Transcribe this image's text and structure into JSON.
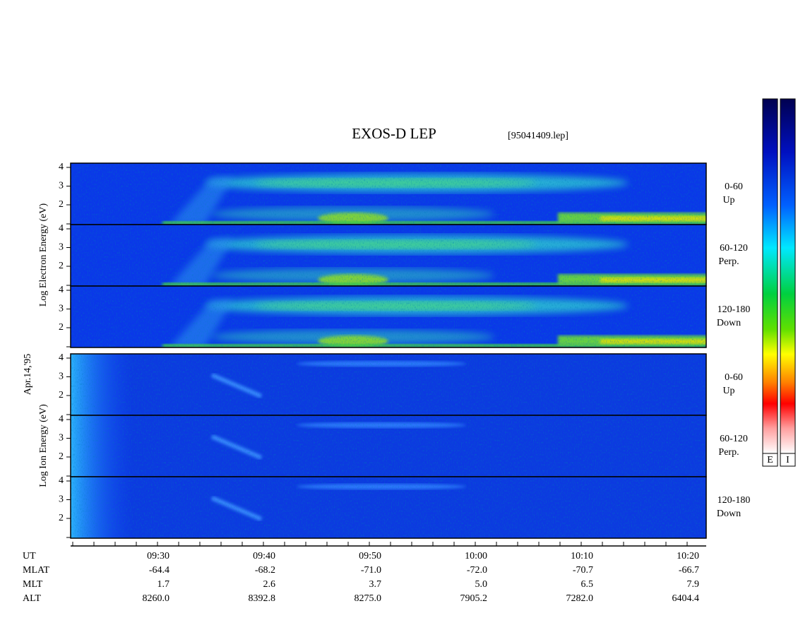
{
  "header": {
    "title": "EXOS-D LEP",
    "file": "[95041409.lep]"
  },
  "date": "Apr.14,'95",
  "electron": {
    "axis_label": "Log Electron Energy (eV)",
    "panels": [
      {
        "angle": "0-60",
        "direction": "Up"
      },
      {
        "angle": "60-120",
        "direction": "Perp."
      },
      {
        "angle": "120-180",
        "direction": "Down"
      }
    ]
  },
  "ion": {
    "axis_label": "Log Ion Energy (eV)",
    "panels": [
      {
        "angle": "0-60",
        "direction": "Up"
      },
      {
        "angle": "60-120",
        "direction": "Perp."
      },
      {
        "angle": "120-180",
        "direction": "Down"
      }
    ]
  },
  "yticks": [
    4,
    3,
    2
  ],
  "colorbars": [
    "E",
    "I"
  ],
  "orbit_table": {
    "rows": [
      {
        "name": "UT",
        "values": [
          "09:30",
          "09:40",
          "09:50",
          "10:00",
          "10:10",
          "10:20"
        ]
      },
      {
        "name": "MLAT",
        "values": [
          "-64.4",
          "-68.2",
          "-71.0",
          "-72.0",
          "-70.7",
          "-66.7"
        ]
      },
      {
        "name": "MLT",
        "values": [
          "1.7",
          "2.6",
          "3.7",
          "5.0",
          "6.5",
          "7.9"
        ]
      },
      {
        "name": "ALT",
        "values": [
          "8260.0",
          "8392.8",
          "8275.0",
          "7905.2",
          "7282.0",
          "6404.4"
        ]
      }
    ]
  }
}
